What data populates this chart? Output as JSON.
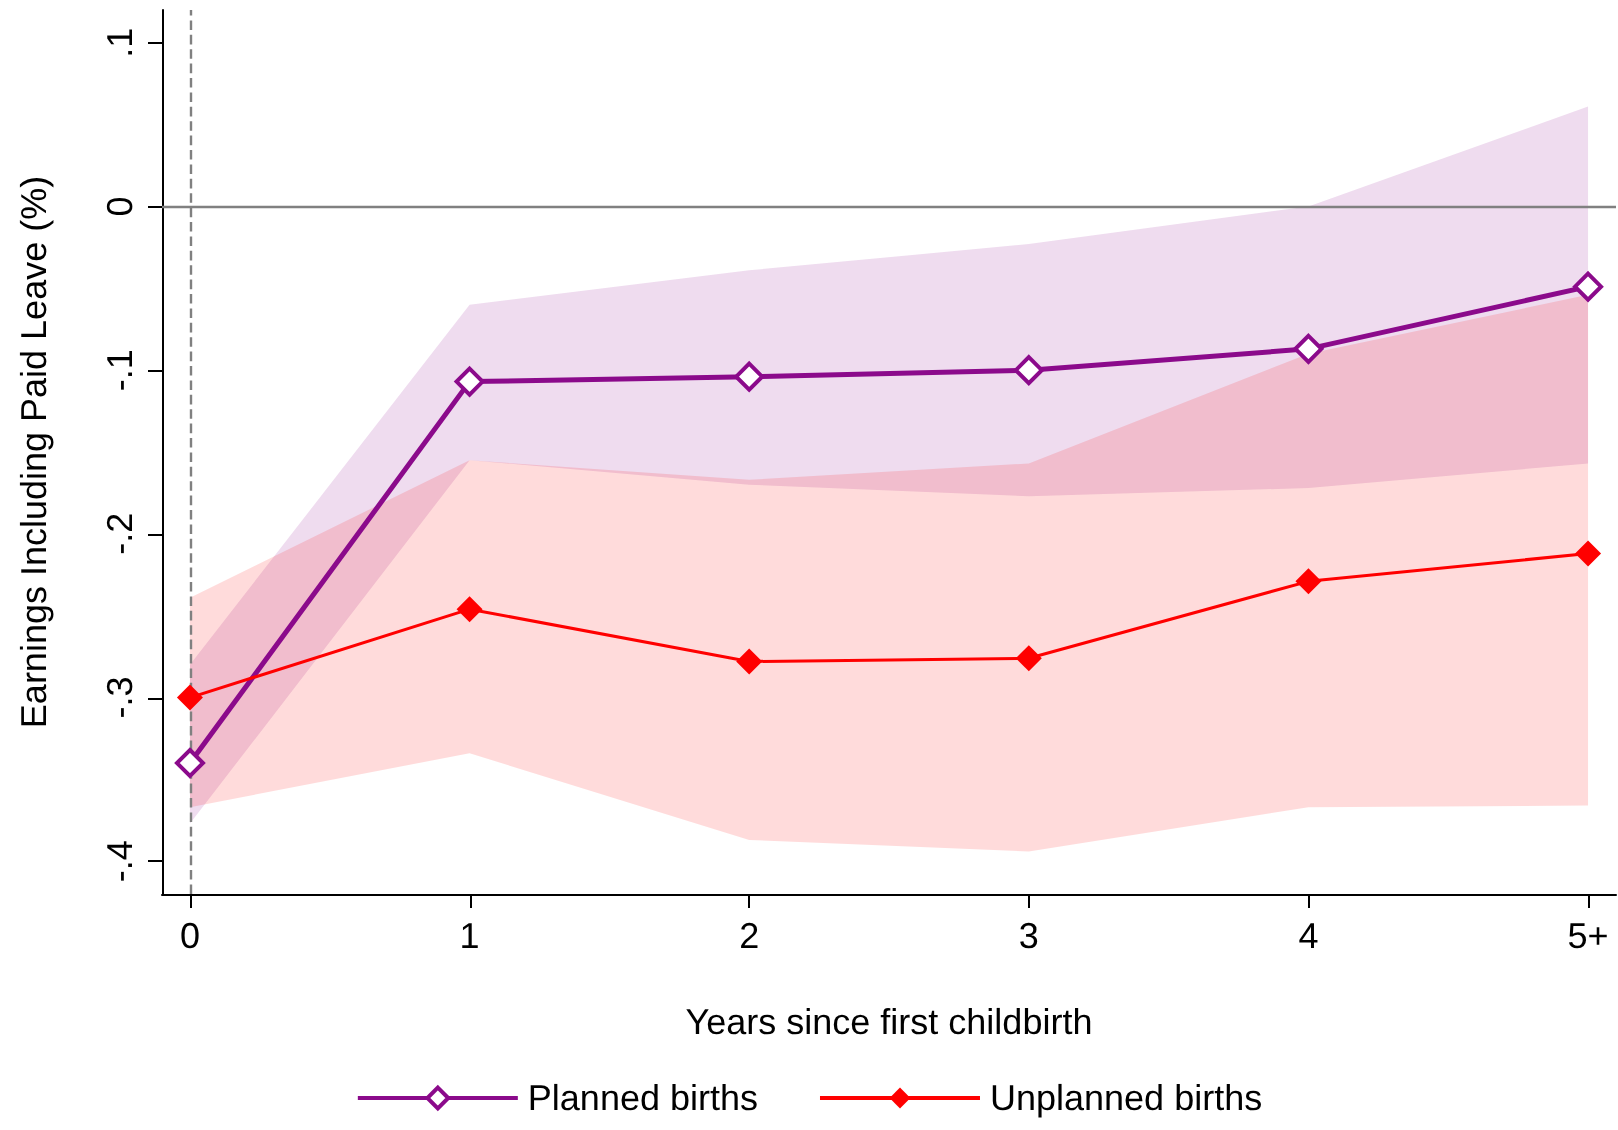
{
  "chart_data": {
    "type": "line",
    "xlabel": "Years since first childbirth",
    "ylabel": "Earnings Including Paid Leave (%)",
    "x": [
      0,
      1,
      2,
      3,
      4,
      5
    ],
    "series": [
      {
        "name": "Planned births",
        "color": "#8b0a8b",
        "values": [
          -0.34,
          -0.107,
          -0.104,
          -0.1,
          -0.087,
          -0.049
        ],
        "lower": [
          -0.377,
          -0.155,
          -0.17,
          -0.177,
          -0.172,
          -0.157
        ],
        "upper": [
          -0.28,
          -0.06,
          -0.039,
          -0.023,
          0.0,
          0.061
        ]
      },
      {
        "name": "Unplanned births",
        "color": "#ff0000",
        "values": [
          -0.3,
          -0.246,
          -0.278,
          -0.276,
          -0.229,
          -0.212
        ],
        "lower": [
          -0.367,
          -0.334,
          -0.387,
          -0.394,
          -0.367,
          -0.366
        ],
        "upper": [
          -0.239,
          -0.155,
          -0.167,
          -0.157,
          -0.09,
          -0.054
        ]
      }
    ],
    "xlim": [
      -0.1,
      5.1
    ],
    "xticks": [
      0,
      1,
      2,
      3,
      4,
      {
        "value": 5,
        "label": "5+"
      }
    ],
    "ylim": [
      -0.42,
      0.12
    ],
    "yticks": [
      {
        "value": -0.4,
        "label": "-.4"
      },
      {
        "value": -0.3,
        "label": "-.3"
      },
      {
        "value": -0.2,
        "label": "-.2"
      },
      {
        "value": -0.1,
        "label": "-.1"
      },
      0,
      {
        "value": 0.1,
        "label": ".1"
      }
    ],
    "ref_lines": [
      {
        "axis": "x",
        "value": 0,
        "color": "#808080",
        "line_style": "dashed"
      },
      {
        "axis": "y",
        "value": 0,
        "color": "#808080",
        "line_style": "solid"
      }
    ],
    "marker": "diamond",
    "grid": false,
    "legend": "bottom"
  }
}
